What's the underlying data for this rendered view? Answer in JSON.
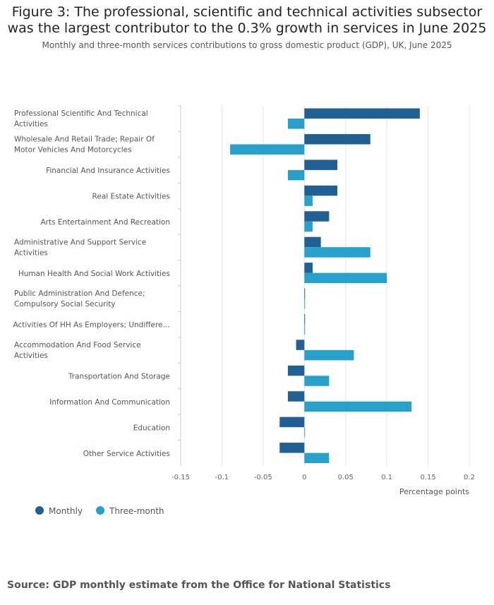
{
  "title": "Figure 3: The professional, scientific and technical activities subsector was the largest contributor to the 0.3% growth in services in June 2025",
  "subtitle": "Monthly and three-month services contributions to gross domestic product (GDP), UK, June 2025",
  "source": "Source: GDP monthly estimate from the Office for National Statistics",
  "colors": {
    "monthly": "#206095",
    "three_month": "#27a0cc"
  },
  "chart_data": {
    "type": "bar",
    "orientation": "horizontal",
    "title": "Figure 3: The professional, scientific and technical activities subsector was the largest contributor to the 0.3% growth in services in June 2025",
    "xlabel": "Percentage points",
    "ylabel": "",
    "xlim": [
      -0.15,
      0.2
    ],
    "xticks": [
      -0.15,
      -0.1,
      -0.05,
      0,
      0.05,
      0.1,
      0.15,
      0.2
    ],
    "xtick_labels": [
      "-0.15",
      "-0.1",
      "-0.05",
      "0",
      "0.05",
      "0.1",
      "0.15",
      "0.2"
    ],
    "grid": true,
    "legend_position": "bottom-left",
    "categories": [
      [
        "Professional Scientific And Technical",
        "Activities"
      ],
      [
        "Wholesale And Retail Trade; Repair Of",
        "Motor Vehicles And Motorcycles"
      ],
      [
        "Financial And Insurance Activities"
      ],
      [
        "Real Estate Activities"
      ],
      [
        "Arts Entertainment And Recreation"
      ],
      [
        "Administrative And Support Service",
        "Activities"
      ],
      [
        "Human Health And Social Work Activities"
      ],
      [
        "Public Administration And Defence;",
        "Compulsory Social Security"
      ],
      [
        "Activities Of HH As Employers; Undiffere…"
      ],
      [
        "Accommodation And Food Service",
        "Activities"
      ],
      [
        "Transportation And Storage"
      ],
      [
        "Information And Communication"
      ],
      [
        "Education"
      ],
      [
        "Other Service Activities"
      ]
    ],
    "series": [
      {
        "name": "Monthly",
        "values": [
          0.14,
          0.08,
          0.04,
          0.04,
          0.03,
          0.02,
          0.01,
          0,
          0,
          -0.01,
          -0.02,
          -0.02,
          -0.03,
          -0.03
        ]
      },
      {
        "name": "Three-month",
        "values": [
          -0.02,
          -0.09,
          -0.02,
          0.01,
          0.01,
          0.08,
          0.1,
          0,
          0,
          0.06,
          0.03,
          0.13,
          0,
          0.03
        ]
      }
    ]
  }
}
